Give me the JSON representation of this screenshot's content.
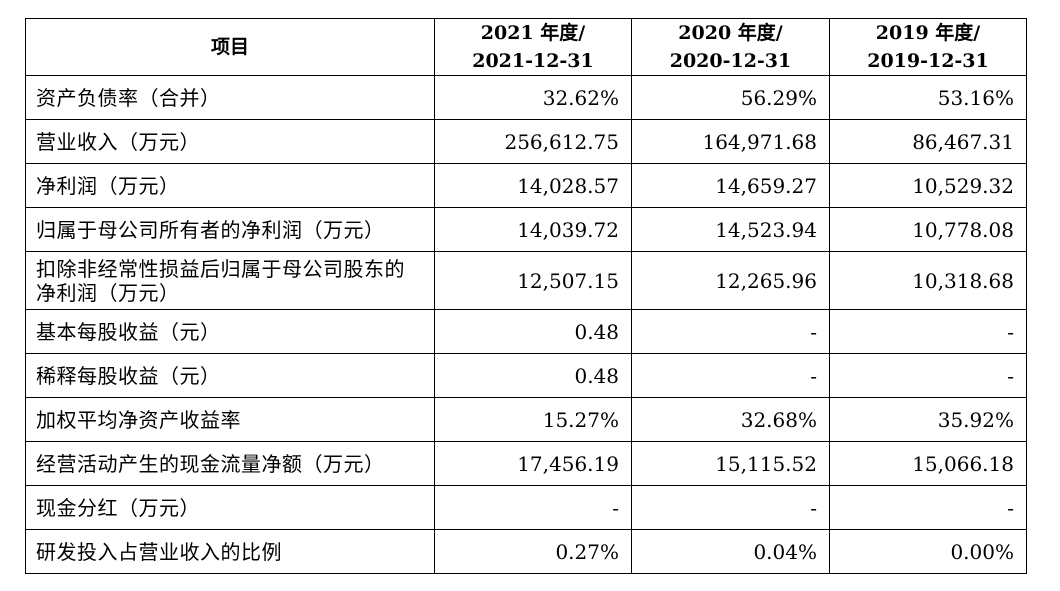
{
  "table": {
    "headers": [
      {
        "line1": "项目",
        "line2": ""
      },
      {
        "line1": "2021 年度/",
        "line2": "2021-12-31"
      },
      {
        "line1": "2020 年度/",
        "line2": "2020-12-31"
      },
      {
        "line1": "2019 年度/",
        "line2": "2019-12-31"
      }
    ],
    "rows": [
      {
        "label": "资产负债率（合并）",
        "v2021": "32.62%",
        "v2020": "56.29%",
        "v2019": "53.16%"
      },
      {
        "label": "营业收入（万元）",
        "v2021": "256,612.75",
        "v2020": "164,971.68",
        "v2019": "86,467.31"
      },
      {
        "label": "净利润（万元）",
        "v2021": "14,028.57",
        "v2020": "14,659.27",
        "v2019": "10,529.32"
      },
      {
        "label": "归属于母公司所有者的净利润（万元）",
        "v2021": "14,039.72",
        "v2020": "14,523.94",
        "v2019": "10,778.08"
      },
      {
        "label": "扣除非经常性损益后归属于母公司股东的净利润（万元）",
        "v2021": "12,507.15",
        "v2020": "12,265.96",
        "v2019": "10,318.68"
      },
      {
        "label": "基本每股收益（元）",
        "v2021": "0.48",
        "v2020": "-",
        "v2019": "-"
      },
      {
        "label": "稀释每股收益（元）",
        "v2021": "0.48",
        "v2020": "-",
        "v2019": "-"
      },
      {
        "label": "加权平均净资产收益率",
        "v2021": "15.27%",
        "v2020": "32.68%",
        "v2019": "35.92%"
      },
      {
        "label": "经营活动产生的现金流量净额（万元）",
        "v2021": "17,456.19",
        "v2020": "15,115.52",
        "v2019": "15,066.18"
      },
      {
        "label": "现金分红（万元）",
        "v2021": "-",
        "v2020": "-",
        "v2019": "-"
      },
      {
        "label": "研发投入占营业收入的比例",
        "v2021": "0.27%",
        "v2020": "0.04%",
        "v2019": "0.00%"
      }
    ]
  }
}
